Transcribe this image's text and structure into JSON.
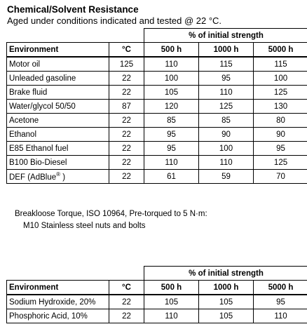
{
  "title": "Chemical/Solvent Resistance",
  "subtitle": "Aged under conditions indicated and tested @ 22 °C.",
  "table1": {
    "group_header": "% of initial strength",
    "columns": [
      "Environment",
      "°C",
      "500 h",
      "1000 h",
      "5000 h"
    ],
    "rows": [
      [
        "Motor oil",
        "125",
        "110",
        "115",
        "115"
      ],
      [
        "Unleaded gasoline",
        "22",
        "100",
        "95",
        "100"
      ],
      [
        "Brake fluid",
        "22",
        "105",
        "110",
        "125"
      ],
      [
        "Water/glycol 50/50",
        "87",
        "120",
        "125",
        "130"
      ],
      [
        "Acetone",
        "22",
        "85",
        "85",
        "80"
      ],
      [
        "Ethanol",
        "22",
        "95",
        "90",
        "90"
      ],
      [
        "E85 Ethanol fuel",
        "22",
        "95",
        "100",
        "95"
      ],
      [
        "B100 Bio-Diesel",
        "22",
        "110",
        "110",
        "125"
      ],
      [
        "DEF (AdBlue",
        "22",
        "61",
        "59",
        "70"
      ]
    ],
    "def_superscript": "®",
    "def_suffix": " )"
  },
  "note": {
    "line1": "Breakloose Torque, ISO 10964, Pre-torqued to 5 N·m:",
    "line2": "M10 Stainless steel nuts and bolts"
  },
  "table2": {
    "group_header": "% of initial strength",
    "columns": [
      "Environment",
      "°C",
      "500 h",
      "1000 h",
      "5000 h"
    ],
    "rows": [
      [
        "Sodium Hydroxide, 20%",
        "22",
        "105",
        "105",
        "95"
      ],
      [
        "Phosphoric Acid, 10%",
        "22",
        "110",
        "105",
        "110"
      ]
    ]
  }
}
